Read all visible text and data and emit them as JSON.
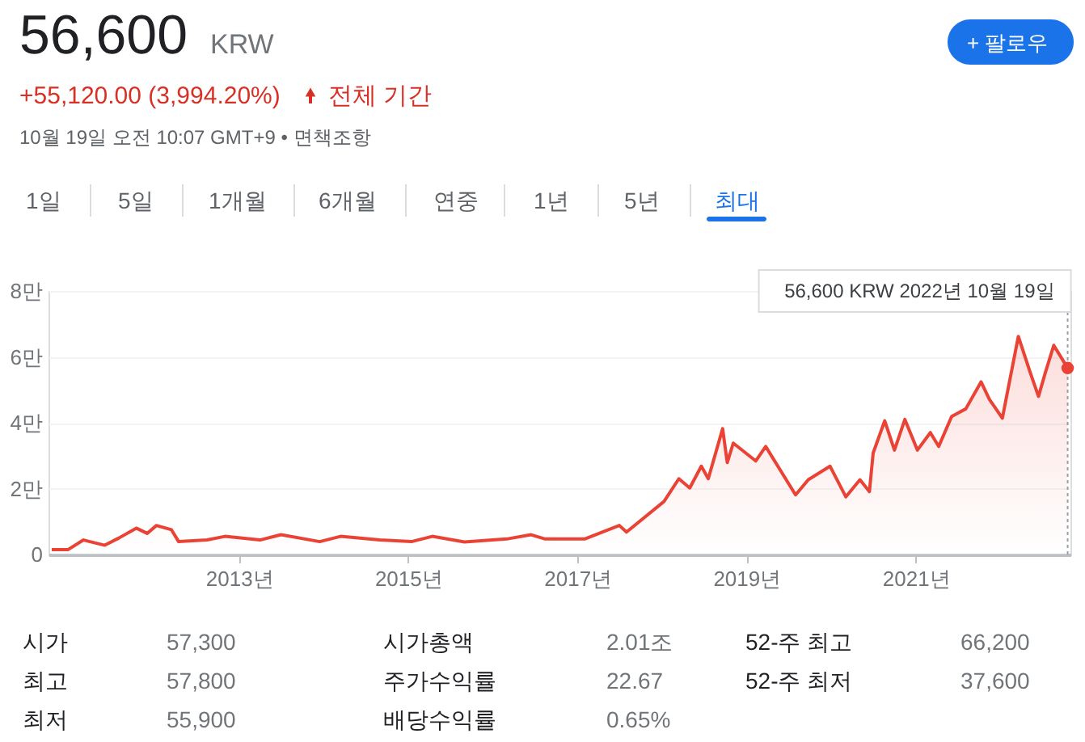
{
  "chart_data": {
    "type": "area",
    "x": [
      "2010-10-15",
      "2010-12-25",
      "2011-03-01",
      "2011-06-01",
      "2011-08-01",
      "2011-10-15",
      "2011-12-01",
      "2012-01-10",
      "2012-03-15",
      "2012-04-15",
      "2012-08-15",
      "2012-11-01",
      "2013-04-01",
      "2013-07-01",
      "2013-12-15",
      "2014-03-15",
      "2014-09-01",
      "2015-01-15",
      "2015-04-15",
      "2015-09-01",
      "2016-03-01",
      "2016-06-15",
      "2016-08-15",
      "2017-02-01",
      "2017-07-01",
      "2017-08-01",
      "2018-01-10",
      "2018-03-15",
      "2018-05-01",
      "2018-06-20",
      "2018-07-20",
      "2018-09-20",
      "2018-10-10",
      "2018-11-05",
      "2019-02-10",
      "2019-03-25",
      "2019-08-01",
      "2019-09-25",
      "2019-12-28",
      "2020-03-05",
      "2020-05-05",
      "2020-06-15",
      "2020-07-01",
      "2020-08-20",
      "2020-10-01",
      "2020-11-15",
      "2021-01-08",
      "2021-03-05",
      "2021-04-10",
      "2021-06-05",
      "2021-08-05",
      "2021-10-10",
      "2021-11-15",
      "2022-01-10",
      "2022-03-20",
      "2022-05-10",
      "2022-06-15",
      "2022-07-15",
      "2022-08-20",
      "2022-10-19"
    ],
    "series": [
      {
        "color": "#ea4335",
        "values": [
          0.15,
          0.15,
          0.44,
          0.28,
          0.5,
          0.8,
          0.64,
          0.88,
          0.75,
          0.39,
          0.44,
          0.55,
          0.44,
          0.6,
          0.39,
          0.55,
          0.44,
          0.39,
          0.55,
          0.38,
          0.47,
          0.6,
          0.47,
          0.47,
          0.88,
          0.68,
          1.61,
          2.3,
          2.02,
          2.68,
          2.3,
          3.82,
          2.79,
          3.38,
          2.84,
          3.28,
          1.81,
          2.27,
          2.68,
          1.75,
          2.27,
          1.91,
          3.08,
          4.06,
          3.17,
          4.1,
          3.17,
          3.7,
          3.28,
          4.19,
          4.42,
          5.24,
          4.71,
          4.14,
          6.62,
          5.53,
          4.8,
          5.53,
          6.35,
          5.66
        ]
      }
    ],
    "xlim": [
      "2010-10-01",
      "2022-10-31"
    ],
    "xticks": [
      {
        "value": "2013",
        "label": "2013년"
      },
      {
        "value": "2015",
        "label": "2015년"
      },
      {
        "value": "2017",
        "label": "2017년"
      },
      {
        "value": "2019",
        "label": "2019년"
      },
      {
        "value": "2021",
        "label": "2021년"
      }
    ],
    "ylim": [
      0,
      8
    ],
    "yticks": [
      0,
      {
        "value": 2,
        "label": "2만"
      },
      {
        "value": 4,
        "label": "4만"
      },
      {
        "value": 6,
        "label": "6만"
      },
      {
        "value": 8,
        "label": "8만"
      }
    ],
    "grid": "y",
    "annotations": [
      "56,600",
      "KRW",
      "+55,120.00 (3,994.20%)",
      "전체 기간",
      "10월 19일 오전 10:07 GMT+9 • 면책조항",
      "+ 팔로우",
      "1일",
      "5일",
      "1개월",
      "6개월",
      "연중",
      "1년",
      "5년",
      "최대",
      "시가",
      "57,300",
      "시가총액",
      "2.01조",
      "52-주 최고",
      "66,200",
      "최고",
      "57,800",
      "주가수익률",
      "22.67",
      "52-주 최저",
      "37,600",
      "최저",
      "55,900",
      "배당수익률",
      "0.65%",
      "56,600 KRW  2022년 10월 19일"
    ]
  }
}
